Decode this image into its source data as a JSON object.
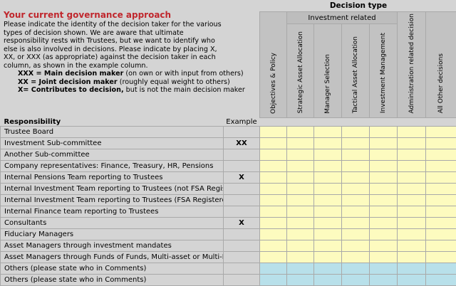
{
  "intro": {
    "title": "Your current governance approach",
    "paragraph": "Please indicate the identity of the decision taker for the various types of decision shown.  We are aware that ultimate responsibility rests with Trustees, but we want to identify who else is also involved in decisions.  Please indicate  by placing  X, XX, or XXX (as appropriate) against the decision taker  in each column, as shown in the example column.",
    "keys": [
      {
        "code": "XXX = Main decision maker",
        "note": " (on own or with input from others)"
      },
      {
        "code": "XX = Joint decision maker",
        "note": " (roughly equal weight to others)"
      },
      {
        "code": "X= Contributes to decision,",
        "note": " but is not the main decision maker"
      }
    ]
  },
  "decision_type_title": "Decision type",
  "investment_related_label": "Investment related",
  "columns": [
    "Objectives & Policy",
    "Strategic  Asset  Allocation",
    "Manager Selection",
    "Tactical  Asset  Allocation",
    "Investment Management",
    "Administration related decision",
    "All  Other decisions"
  ],
  "responsibility_header": "Responsibility",
  "example_header": "Example",
  "rows": [
    {
      "label": "Trustee Board",
      "example": "",
      "fill": "y"
    },
    {
      "label": "Investment Sub-committee",
      "example": "XX",
      "fill": "y"
    },
    {
      "label": "Another Sub-committee",
      "example": "",
      "fill": "y"
    },
    {
      "label": "Company representatives: Finance, Treasury, HR,  Pensions",
      "example": "",
      "fill": "y"
    },
    {
      "label": "Internal Pensions Team reporting to Trustees",
      "example": "X",
      "fill": "y"
    },
    {
      "label": "Internal Investment Team reporting to Trustees (not FSA Registered)",
      "example": "",
      "fill": "y"
    },
    {
      "label": "Internal Investment Team reporting to Trustees (FSA Registered)",
      "example": "",
      "fill": "y"
    },
    {
      "label": "Internal Finance team reporting to Trustees",
      "example": "",
      "fill": "y"
    },
    {
      "label": "Consultants",
      "example": "X",
      "fill": "y"
    },
    {
      "label": "Fiduciary Managers",
      "example": "",
      "fill": "y"
    },
    {
      "label": "Asset Managers through investment mandates",
      "example": "",
      "fill": "y"
    },
    {
      "label": "Asset Managers through Funds of Funds, Multi-asset or Multi-Manager Funds",
      "example": "",
      "fill": "y"
    },
    {
      "label": "Others (please state who in Comments)",
      "example": "",
      "fill": "b"
    },
    {
      "label": "Others (please state who in Comments)",
      "example": "",
      "fill": "b"
    }
  ],
  "colors": {
    "background": "#d4d4d4",
    "title_red": "#c0272d",
    "input_yellow": "#fdfbbf",
    "input_blue": "#b8e0ea"
  }
}
